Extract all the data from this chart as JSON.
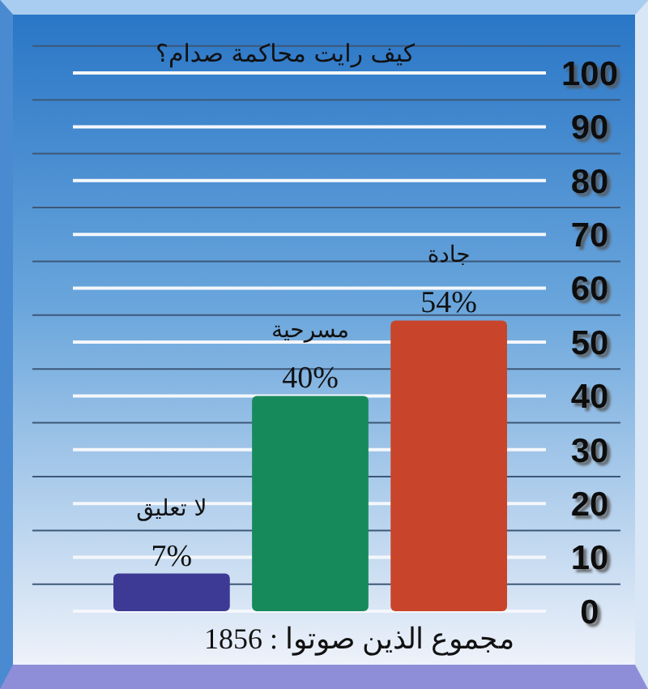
{
  "chart_data": {
    "type": "bar",
    "title": "كيف رايت محاكمة صدام؟",
    "categories": [
      "لا تعليق",
      "مسرحية",
      "جادة"
    ],
    "values": [
      7,
      40,
      54
    ],
    "colors": [
      "#3c3a94",
      "#178a5c",
      "#c8442a"
    ],
    "value_labels": [
      "7%",
      "40%",
      "54%"
    ],
    "ylim": [
      0,
      105
    ],
    "yticks": [
      0,
      {
        "value": 5,
        "label": null
      },
      10,
      {
        "value": 15,
        "label": null
      },
      20,
      {
        "value": 25,
        "label": null
      },
      30,
      {
        "value": 35,
        "label": null
      },
      40,
      {
        "value": 45,
        "label": null
      },
      50,
      {
        "value": 55,
        "label": null
      },
      60,
      {
        "value": 65,
        "label": null
      },
      70,
      {
        "value": 75,
        "label": null
      },
      80,
      {
        "value": 85,
        "label": null
      },
      90,
      {
        "value": 95,
        "label": null
      },
      100,
      {
        "value": 105,
        "label": null
      }
    ],
    "grid": true,
    "annotations": [
      "مجموع الذين صوتوا : 1856"
    ]
  }
}
